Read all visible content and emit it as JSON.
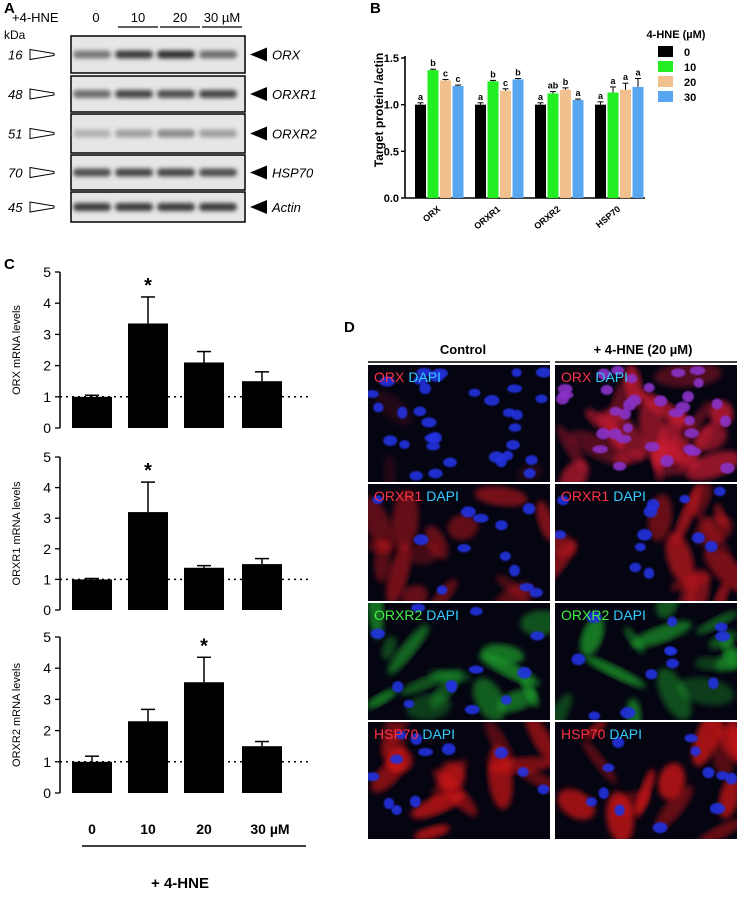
{
  "panels": {
    "a": "A",
    "b": "B",
    "c": "C",
    "d": "D"
  },
  "blot": {
    "treatment_label": "+4-HNE",
    "kda_label": "kDa",
    "concentrations": [
      "0",
      "10",
      "20",
      "30 µM"
    ],
    "bands": [
      {
        "kda": "16",
        "name": "ORX",
        "intensity": [
          0.55,
          0.85,
          0.9,
          0.6
        ]
      },
      {
        "kda": "48",
        "name": "ORXR1",
        "intensity": [
          0.6,
          0.8,
          0.75,
          0.8
        ]
      },
      {
        "kda": "51",
        "name": "ORXR2",
        "intensity": [
          0.25,
          0.35,
          0.45,
          0.35
        ]
      },
      {
        "kda": "70",
        "name": "HSP70",
        "intensity": [
          0.75,
          0.8,
          0.8,
          0.75
        ]
      },
      {
        "kda": "45",
        "name": "Actin",
        "intensity": [
          0.85,
          0.85,
          0.85,
          0.85
        ]
      }
    ]
  },
  "chart_data": [
    {
      "panel": "B",
      "type": "bar",
      "categories": [
        "ORX",
        "ORXR1",
        "ORXR2",
        "HSP70"
      ],
      "ylabel": "Target protein /actin",
      "ylim": [
        0,
        1.5
      ],
      "yticks": [
        "0.0",
        "0.5",
        "1.0",
        "1.5"
      ],
      "legend_title": "4-HNE (µM)",
      "legend_position": "top-right",
      "series": [
        {
          "name": "0",
          "color": "#000000",
          "values": [
            1.0,
            1.0,
            1.0,
            1.0
          ],
          "errors": [
            0.02,
            0.02,
            0.02,
            0.03
          ],
          "letters": [
            "a",
            "a",
            "a",
            "a"
          ]
        },
        {
          "name": "10",
          "color": "#22ee22",
          "values": [
            1.37,
            1.25,
            1.12,
            1.13
          ],
          "errors": [
            0.01,
            0.01,
            0.02,
            0.06
          ],
          "letters": [
            "b",
            "b",
            "ab",
            "a"
          ]
        },
        {
          "name": "20",
          "color": "#f2c08e",
          "values": [
            1.26,
            1.15,
            1.16,
            1.16
          ],
          "errors": [
            0.01,
            0.02,
            0.02,
            0.07
          ],
          "letters": [
            "c",
            "c",
            "b",
            "a"
          ]
        },
        {
          "name": "30",
          "color": "#58a6f0",
          "values": [
            1.2,
            1.27,
            1.05,
            1.19
          ],
          "errors": [
            0.01,
            0.01,
            0.01,
            0.09
          ],
          "letters": [
            "c",
            "b",
            "a",
            "a"
          ]
        }
      ]
    },
    {
      "panel": "C",
      "type": "bar",
      "categories": [
        "0",
        "10",
        "20",
        "30 µM"
      ],
      "xlabel": "+ 4-HNE",
      "reference_line": 1,
      "subplots": [
        {
          "ylabel": "ORX mRNA levels",
          "ylim": [
            0,
            5
          ],
          "values": [
            1.0,
            3.35,
            2.1,
            1.5
          ],
          "errors": [
            0.05,
            0.85,
            0.35,
            0.3
          ],
          "significance": [
            "",
            "*",
            "",
            ""
          ]
        },
        {
          "ylabel": "ORXR1 mRNA levels",
          "ylim": [
            0,
            5
          ],
          "values": [
            1.0,
            3.2,
            1.38,
            1.5
          ],
          "errors": [
            0.03,
            0.98,
            0.07,
            0.18
          ],
          "significance": [
            "",
            "*",
            "",
            ""
          ]
        },
        {
          "ylabel": "ORXR2 mRNA levels",
          "ylim": [
            0,
            5
          ],
          "values": [
            1.0,
            2.3,
            3.55,
            1.5
          ],
          "errors": [
            0.18,
            0.38,
            0.8,
            0.15
          ],
          "significance": [
            "",
            "",
            "*",
            ""
          ]
        }
      ]
    }
  ],
  "microscopy": {
    "columns": [
      "Control",
      "+ 4-HNE (20 µM)"
    ],
    "rows": [
      {
        "marker": "ORX",
        "marker_color": "#ff3344",
        "stain": "DAPI",
        "stain_color": "#33ccff"
      },
      {
        "marker": "ORXR1",
        "marker_color": "#ff3344",
        "stain": "DAPI",
        "stain_color": "#33ccff"
      },
      {
        "marker": "ORXR2",
        "marker_color": "#44ee44",
        "stain": "DAPI",
        "stain_color": "#33ccff"
      },
      {
        "marker": "HSP70",
        "marker_color": "#ff3344",
        "stain": "DAPI",
        "stain_color": "#33ccff"
      }
    ]
  }
}
